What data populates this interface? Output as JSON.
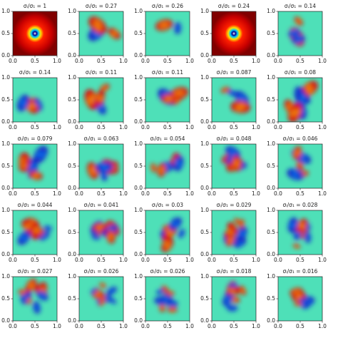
{
  "chart_data": [
    {
      "type": "heatmap",
      "title": "σᵢ/σ₁ = 1",
      "xlim": [
        0,
        1
      ],
      "ylim": [
        0,
        1
      ],
      "xticks": [
        {
          "value": 0,
          "label": "0.0"
        },
        0.5,
        {
          "value": 1,
          "label": "1.0"
        }
      ],
      "yticks": [
        {
          "value": 0,
          "label": "0.0"
        },
        0.5,
        {
          "value": 1,
          "label": "1.0"
        }
      ]
    },
    {
      "type": "heatmap",
      "title": "σᵢ/σ₁ = 0.27",
      "xlim": [
        0,
        1
      ],
      "ylim": [
        0,
        1
      ],
      "xticks": [
        {
          "value": 0,
          "label": "0.0"
        },
        0.5,
        {
          "value": 1,
          "label": "1.0"
        }
      ],
      "yticks": [
        {
          "value": 0,
          "label": "0.0"
        },
        0.5,
        {
          "value": 1,
          "label": "1.0"
        }
      ]
    },
    {
      "type": "heatmap",
      "title": "σᵢ/σ₁ = 0.26",
      "xlim": [
        0,
        1
      ],
      "ylim": [
        0,
        1
      ],
      "xticks": [
        {
          "value": 0,
          "label": "0.0"
        },
        0.5,
        {
          "value": 1,
          "label": "1.0"
        }
      ],
      "yticks": [
        {
          "value": 0,
          "label": "0.0"
        },
        0.5,
        {
          "value": 1,
          "label": "1.0"
        }
      ]
    },
    {
      "type": "heatmap",
      "title": "σᵢ/σ₁ = 0.24",
      "xlim": [
        0,
        1
      ],
      "ylim": [
        0,
        1
      ],
      "xticks": [
        {
          "value": 0,
          "label": "0.0"
        },
        0.5,
        {
          "value": 1,
          "label": "1.0"
        }
      ],
      "yticks": [
        {
          "value": 0,
          "label": "0.0"
        },
        0.5,
        {
          "value": 1,
          "label": "1.0"
        }
      ]
    },
    {
      "type": "heatmap",
      "title": "σᵢ/σ₁ = 0.14",
      "xlim": [
        0,
        1
      ],
      "ylim": [
        0,
        1
      ],
      "xticks": [
        {
          "value": 0,
          "label": "0.0"
        },
        0.5,
        {
          "value": 1,
          "label": "1.0"
        }
      ],
      "yticks": [
        {
          "value": 0,
          "label": "0.0"
        },
        0.5,
        {
          "value": 1,
          "label": "1.0"
        }
      ]
    },
    {
      "type": "heatmap",
      "title": "σᵢ/σ₁ = 0.14",
      "xlim": [
        0,
        1
      ],
      "ylim": [
        0,
        1
      ],
      "xticks": [
        {
          "value": 0,
          "label": "0.0"
        },
        0.5,
        {
          "value": 1,
          "label": "1.0"
        }
      ],
      "yticks": [
        {
          "value": 0,
          "label": "0.0"
        },
        0.5,
        {
          "value": 1,
          "label": "1.0"
        }
      ]
    },
    {
      "type": "heatmap",
      "title": "σᵢ/σ₁ = 0.11",
      "xlim": [
        0,
        1
      ],
      "ylim": [
        0,
        1
      ],
      "xticks": [
        {
          "value": 0,
          "label": "0.0"
        },
        0.5,
        {
          "value": 1,
          "label": "1.0"
        }
      ],
      "yticks": [
        {
          "value": 0,
          "label": "0.0"
        },
        0.5,
        {
          "value": 1,
          "label": "1.0"
        }
      ]
    },
    {
      "type": "heatmap",
      "title": "σᵢ/σ₁ = 0.11",
      "xlim": [
        0,
        1
      ],
      "ylim": [
        0,
        1
      ],
      "xticks": [
        {
          "value": 0,
          "label": "0.0"
        },
        0.5,
        {
          "value": 1,
          "label": "1.0"
        }
      ],
      "yticks": [
        {
          "value": 0,
          "label": "0.0"
        },
        0.5,
        {
          "value": 1,
          "label": "1.0"
        }
      ]
    },
    {
      "type": "heatmap",
      "title": "σᵢ/σ₁ = 0.087",
      "xlim": [
        0,
        1
      ],
      "ylim": [
        0,
        1
      ],
      "xticks": [
        {
          "value": 0,
          "label": "0.0"
        },
        0.5,
        {
          "value": 1,
          "label": "1.0"
        }
      ],
      "yticks": [
        {
          "value": 0,
          "label": "0.0"
        },
        0.5,
        {
          "value": 1,
          "label": "1.0"
        }
      ]
    },
    {
      "type": "heatmap",
      "title": "σᵢ/σ₁ = 0.08",
      "xlim": [
        0,
        1
      ],
      "ylim": [
        0,
        1
      ],
      "xticks": [
        {
          "value": 0,
          "label": "0.0"
        },
        0.5,
        {
          "value": 1,
          "label": "1.0"
        }
      ],
      "yticks": [
        {
          "value": 0,
          "label": "0.0"
        },
        0.5,
        {
          "value": 1,
          "label": "1.0"
        }
      ]
    },
    {
      "type": "heatmap",
      "title": "σᵢ/σ₁ = 0.079",
      "xlim": [
        0,
        1
      ],
      "ylim": [
        0,
        1
      ],
      "xticks": [
        {
          "value": 0,
          "label": "0.0"
        },
        0.5,
        {
          "value": 1,
          "label": "1.0"
        }
      ],
      "yticks": [
        {
          "value": 0,
          "label": "0.0"
        },
        0.5,
        {
          "value": 1,
          "label": "1.0"
        }
      ]
    },
    {
      "type": "heatmap",
      "title": "σᵢ/σ₁ = 0.063",
      "xlim": [
        0,
        1
      ],
      "ylim": [
        0,
        1
      ],
      "xticks": [
        {
          "value": 0,
          "label": "0.0"
        },
        0.5,
        {
          "value": 1,
          "label": "1.0"
        }
      ],
      "yticks": [
        {
          "value": 0,
          "label": "0.0"
        },
        0.5,
        {
          "value": 1,
          "label": "1.0"
        }
      ]
    },
    {
      "type": "heatmap",
      "title": "σᵢ/σ₁ = 0.054",
      "xlim": [
        0,
        1
      ],
      "ylim": [
        0,
        1
      ],
      "xticks": [
        {
          "value": 0,
          "label": "0.0"
        },
        0.5,
        {
          "value": 1,
          "label": "1.0"
        }
      ],
      "yticks": [
        {
          "value": 0,
          "label": "0.0"
        },
        0.5,
        {
          "value": 1,
          "label": "1.0"
        }
      ]
    },
    {
      "type": "heatmap",
      "title": "σᵢ/σ₁ = 0.048",
      "xlim": [
        0,
        1
      ],
      "ylim": [
        0,
        1
      ],
      "xticks": [
        {
          "value": 0,
          "label": "0.0"
        },
        0.5,
        {
          "value": 1,
          "label": "1.0"
        }
      ],
      "yticks": [
        {
          "value": 0,
          "label": "0.0"
        },
        0.5,
        {
          "value": 1,
          "label": "1.0"
        }
      ]
    },
    {
      "type": "heatmap",
      "title": "σᵢ/σ₁ = 0.046",
      "xlim": [
        0,
        1
      ],
      "ylim": [
        0,
        1
      ],
      "xticks": [
        {
          "value": 0,
          "label": "0.0"
        },
        0.5,
        {
          "value": 1,
          "label": "1.0"
        }
      ],
      "yticks": [
        {
          "value": 0,
          "label": "0.0"
        },
        0.5,
        {
          "value": 1,
          "label": "1.0"
        }
      ]
    },
    {
      "type": "heatmap",
      "title": "σᵢ/σ₁ = 0.044",
      "xlim": [
        0,
        1
      ],
      "ylim": [
        0,
        1
      ],
      "xticks": [
        {
          "value": 0,
          "label": "0.0"
        },
        0.5,
        {
          "value": 1,
          "label": "1.0"
        }
      ],
      "yticks": [
        {
          "value": 0,
          "label": "0.0"
        },
        0.5,
        {
          "value": 1,
          "label": "1.0"
        }
      ]
    },
    {
      "type": "heatmap",
      "title": "σᵢ/σ₁ = 0.041",
      "xlim": [
        0,
        1
      ],
      "ylim": [
        0,
        1
      ],
      "xticks": [
        {
          "value": 0,
          "label": "0.0"
        },
        0.5,
        {
          "value": 1,
          "label": "1.0"
        }
      ],
      "yticks": [
        {
          "value": 0,
          "label": "0.0"
        },
        0.5,
        {
          "value": 1,
          "label": "1.0"
        }
      ]
    },
    {
      "type": "heatmap",
      "title": "σᵢ/σ₁ = 0.03",
      "xlim": [
        0,
        1
      ],
      "ylim": [
        0,
        1
      ],
      "xticks": [
        {
          "value": 0,
          "label": "0.0"
        },
        0.5,
        {
          "value": 1,
          "label": "1.0"
        }
      ],
      "yticks": [
        {
          "value": 0,
          "label": "0.0"
        },
        0.5,
        {
          "value": 1,
          "label": "1.0"
        }
      ]
    },
    {
      "type": "heatmap",
      "title": "σᵢ/σ₁ = 0.029",
      "xlim": [
        0,
        1
      ],
      "ylim": [
        0,
        1
      ],
      "xticks": [
        {
          "value": 0,
          "label": "0.0"
        },
        0.5,
        {
          "value": 1,
          "label": "1.0"
        }
      ],
      "yticks": [
        {
          "value": 0,
          "label": "0.0"
        },
        0.5,
        {
          "value": 1,
          "label": "1.0"
        }
      ]
    },
    {
      "type": "heatmap",
      "title": "σᵢ/σ₁ = 0.028",
      "xlim": [
        0,
        1
      ],
      "ylim": [
        0,
        1
      ],
      "xticks": [
        {
          "value": 0,
          "label": "0.0"
        },
        0.5,
        {
          "value": 1,
          "label": "1.0"
        }
      ],
      "yticks": [
        {
          "value": 0,
          "label": "0.0"
        },
        0.5,
        {
          "value": 1,
          "label": "1.0"
        }
      ]
    },
    {
      "type": "heatmap",
      "title": "σᵢ/σ₁ = 0.027",
      "xlim": [
        0,
        1
      ],
      "ylim": [
        0,
        1
      ],
      "xticks": [
        {
          "value": 0,
          "label": "0.0"
        },
        0.5,
        {
          "value": 1,
          "label": "1.0"
        }
      ],
      "yticks": [
        {
          "value": 0,
          "label": "0.0"
        },
        0.5,
        {
          "value": 1,
          "label": "1.0"
        }
      ]
    },
    {
      "type": "heatmap",
      "title": "σᵢ/σ₁ = 0.026",
      "xlim": [
        0,
        1
      ],
      "ylim": [
        0,
        1
      ],
      "xticks": [
        {
          "value": 0,
          "label": "0.0"
        },
        0.5,
        {
          "value": 1,
          "label": "1.0"
        }
      ],
      "yticks": [
        {
          "value": 0,
          "label": "0.0"
        },
        0.5,
        {
          "value": 1,
          "label": "1.0"
        }
      ]
    },
    {
      "type": "heatmap",
      "title": "σᵢ/σ₁ = 0.026",
      "xlim": [
        0,
        1
      ],
      "ylim": [
        0,
        1
      ],
      "xticks": [
        {
          "value": 0,
          "label": "0.0"
        },
        0.5,
        {
          "value": 1,
          "label": "1.0"
        }
      ],
      "yticks": [
        {
          "value": 0,
          "label": "0.0"
        },
        0.5,
        {
          "value": 1,
          "label": "1.0"
        }
      ]
    },
    {
      "type": "heatmap",
      "title": "σᵢ/σ₁ = 0.018",
      "xlim": [
        0,
        1
      ],
      "ylim": [
        0,
        1
      ],
      "xticks": [
        {
          "value": 0,
          "label": "0.0"
        },
        0.5,
        {
          "value": 1,
          "label": "1.0"
        }
      ],
      "yticks": [
        {
          "value": 0,
          "label": "0.0"
        },
        0.5,
        {
          "value": 1,
          "label": "1.0"
        }
      ]
    },
    {
      "type": "heatmap",
      "title": "σᵢ/σ₁ = 0.016",
      "xlim": [
        0,
        1
      ],
      "ylim": [
        0,
        1
      ],
      "xticks": [
        {
          "value": 0,
          "label": "0.0"
        },
        0.5,
        {
          "value": 1,
          "label": "1.0"
        }
      ],
      "yticks": [
        {
          "value": 0,
          "label": "0.0"
        },
        0.5,
        {
          "value": 1,
          "label": "1.0"
        }
      ]
    }
  ]
}
